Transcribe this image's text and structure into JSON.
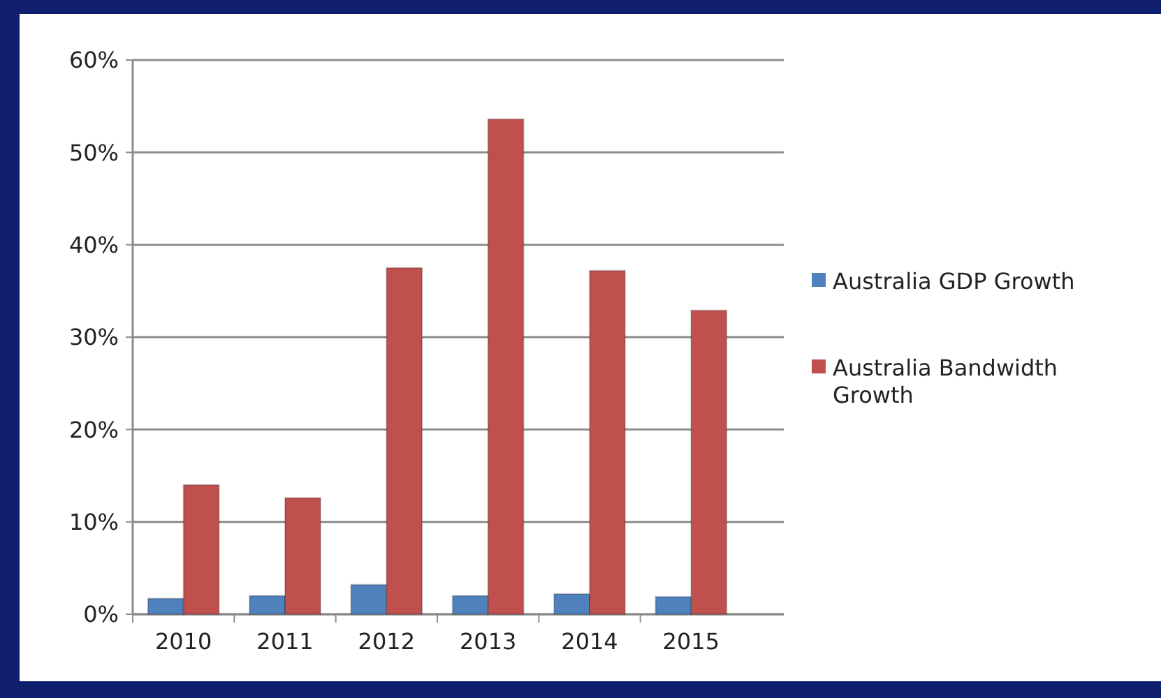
{
  "chart_data": {
    "type": "bar",
    "categories": [
      "2010",
      "2011",
      "2012",
      "2013",
      "2014",
      "2015"
    ],
    "series": [
      {
        "name": "Australia GDP Growth",
        "color": "#4f81bd",
        "values": [
          1.7,
          2.0,
          3.2,
          2.0,
          2.2,
          1.9
        ]
      },
      {
        "name": "Australia Bandwidth Growth",
        "color": "#c0504d",
        "values": [
          14.0,
          12.6,
          37.5,
          53.6,
          37.2,
          32.9
        ]
      }
    ],
    "ylim": [
      0,
      60
    ],
    "yticks": [
      {
        "value": 0,
        "label": "0%"
      },
      {
        "value": 10,
        "label": "10%"
      },
      {
        "value": 20,
        "label": "20%"
      },
      {
        "value": 30,
        "label": "30%"
      },
      {
        "value": 40,
        "label": "40%"
      },
      {
        "value": 50,
        "label": "50%"
      },
      {
        "value": 60,
        "label": "60%"
      }
    ],
    "grid": "y",
    "legend": "right"
  }
}
